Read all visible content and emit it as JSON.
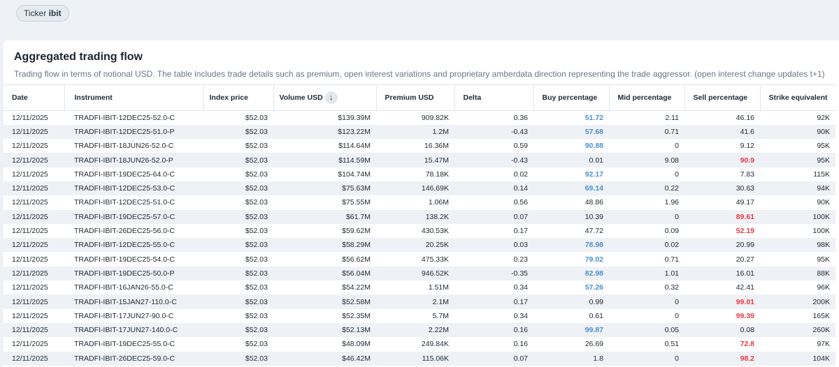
{
  "ticker": {
    "label": "Ticker",
    "value": "ibit"
  },
  "card": {
    "title": "Aggregated trading flow",
    "subtitle": "Trading flow in terms of notional USD. The table includes trade details such as premium, open interest variations and proprietary amberdata direction representing the trade aggressor. (open interest change updates t+1)"
  },
  "colors": {
    "buy_highlight": "#4a90cf",
    "sell_highlight": "#e53945"
  },
  "table": {
    "headers": [
      "Date",
      "Instrument",
      "Index price",
      "Volume USD",
      "Premium USD",
      "Delta",
      "Buy percentage",
      "Mid percentage",
      "Sell percentage",
      "Strike equivalent"
    ],
    "sort_icon": "arrow-down-icon",
    "rows": [
      {
        "date": "12/11/2025",
        "instrument": "TRADFI-IBIT-12DEC25-52.0-C",
        "index_price": "$52.03",
        "volume": "$139.39M",
        "premium": "909.82K",
        "delta": "0.36",
        "buy": "51.72",
        "mid": "2.11",
        "sell": "46.16",
        "strike": "92K",
        "hl": "buy"
      },
      {
        "date": "12/11/2025",
        "instrument": "TRADFI-IBIT-12DEC25-51.0-P",
        "index_price": "$52.03",
        "volume": "$123.22M",
        "premium": "1.2M",
        "delta": "-0.43",
        "buy": "57.68",
        "mid": "0.71",
        "sell": "41.6",
        "strike": "90K",
        "hl": "buy"
      },
      {
        "date": "12/11/2025",
        "instrument": "TRADFI-IBIT-18JUN26-52.0-C",
        "index_price": "$52.03",
        "volume": "$114.64M",
        "premium": "16.36M",
        "delta": "0.59",
        "buy": "90.88",
        "mid": "0",
        "sell": "9.12",
        "strike": "95K",
        "hl": "buy"
      },
      {
        "date": "12/11/2025",
        "instrument": "TRADFI-IBIT-18JUN26-52.0-P",
        "index_price": "$52.03",
        "volume": "$114.59M",
        "premium": "15.47M",
        "delta": "-0.43",
        "buy": "0.01",
        "mid": "9.08",
        "sell": "90.9",
        "strike": "95K",
        "hl": "sell"
      },
      {
        "date": "12/11/2025",
        "instrument": "TRADFI-IBIT-19DEC25-64.0-C",
        "index_price": "$52.03",
        "volume": "$104.74M",
        "premium": "78.18K",
        "delta": "0.02",
        "buy": "92.17",
        "mid": "0",
        "sell": "7.83",
        "strike": "115K",
        "hl": "buy"
      },
      {
        "date": "12/11/2025",
        "instrument": "TRADFI-IBIT-12DEC25-53.0-C",
        "index_price": "$52.03",
        "volume": "$75.63M",
        "premium": "146.69K",
        "delta": "0.14",
        "buy": "69.14",
        "mid": "0.22",
        "sell": "30.63",
        "strike": "94K",
        "hl": "buy"
      },
      {
        "date": "12/11/2025",
        "instrument": "TRADFI-IBIT-12DEC25-51.0-C",
        "index_price": "$52.03",
        "volume": "$75.55M",
        "premium": "1.06M",
        "delta": "0.56",
        "buy": "48.86",
        "mid": "1.96",
        "sell": "49.17",
        "strike": "90K",
        "hl": ""
      },
      {
        "date": "12/11/2025",
        "instrument": "TRADFI-IBIT-19DEC25-57.0-C",
        "index_price": "$52.03",
        "volume": "$61.7M",
        "premium": "138.2K",
        "delta": "0.07",
        "buy": "10.39",
        "mid": "0",
        "sell": "89.61",
        "strike": "100K",
        "hl": "sell"
      },
      {
        "date": "12/11/2025",
        "instrument": "TRADFI-IBIT-26DEC25-56.0-C",
        "index_price": "$52.03",
        "volume": "$59.62M",
        "premium": "430.53K",
        "delta": "0.17",
        "buy": "47.72",
        "mid": "0.09",
        "sell": "52.19",
        "strike": "100K",
        "hl": "sell"
      },
      {
        "date": "12/11/2025",
        "instrument": "TRADFI-IBIT-12DEC25-55.0-C",
        "index_price": "$52.03",
        "volume": "$58.29M",
        "premium": "20.25K",
        "delta": "0.03",
        "buy": "78.98",
        "mid": "0.02",
        "sell": "20.99",
        "strike": "98K",
        "hl": "buy"
      },
      {
        "date": "12/11/2025",
        "instrument": "TRADFI-IBIT-19DEC25-54.0-C",
        "index_price": "$52.03",
        "volume": "$56.62M",
        "premium": "475.33K",
        "delta": "0.23",
        "buy": "79.02",
        "mid": "0.71",
        "sell": "20.27",
        "strike": "95K",
        "hl": "buy"
      },
      {
        "date": "12/11/2025",
        "instrument": "TRADFI-IBIT-19DEC25-50.0-P",
        "index_price": "$52.03",
        "volume": "$56.04M",
        "premium": "946.52K",
        "delta": "-0.35",
        "buy": "82.98",
        "mid": "1.01",
        "sell": "16.01",
        "strike": "88K",
        "hl": "buy"
      },
      {
        "date": "12/11/2025",
        "instrument": "TRADFI-IBIT-16JAN26-55.0-C",
        "index_price": "$52.03",
        "volume": "$54.22M",
        "premium": "1.51M",
        "delta": "0.34",
        "buy": "57.26",
        "mid": "0.32",
        "sell": "42.41",
        "strike": "96K",
        "hl": "buy"
      },
      {
        "date": "12/11/2025",
        "instrument": "TRADFI-IBIT-15JAN27-110.0-C",
        "index_price": "$52.03",
        "volume": "$52.58M",
        "premium": "2.1M",
        "delta": "0.17",
        "buy": "0.99",
        "mid": "0",
        "sell": "99.01",
        "strike": "200K",
        "hl": "sell"
      },
      {
        "date": "12/11/2025",
        "instrument": "TRADFI-IBIT-17JUN27-90.0-C",
        "index_price": "$52.03",
        "volume": "$52.35M",
        "premium": "5.7M",
        "delta": "0.34",
        "buy": "0.61",
        "mid": "0",
        "sell": "99.39",
        "strike": "165K",
        "hl": "sell"
      },
      {
        "date": "12/11/2025",
        "instrument": "TRADFI-IBIT-17JUN27-140.0-C",
        "index_price": "$52.03",
        "volume": "$52.13M",
        "premium": "2.22M",
        "delta": "0.16",
        "buy": "99.87",
        "mid": "0.05",
        "sell": "0.08",
        "strike": "260K",
        "hl": "buy"
      },
      {
        "date": "12/11/2025",
        "instrument": "TRADFI-IBIT-19DEC25-55.0-C",
        "index_price": "$52.03",
        "volume": "$48.09M",
        "premium": "249.84K",
        "delta": "0.16",
        "buy": "26.69",
        "mid": "0.51",
        "sell": "72.8",
        "strike": "97K",
        "hl": "sell"
      },
      {
        "date": "12/11/2025",
        "instrument": "TRADFI-IBIT-26DEC25-59.0-C",
        "index_price": "$52.03",
        "volume": "$46.42M",
        "premium": "115.06K",
        "delta": "0.07",
        "buy": "1.8",
        "mid": "0",
        "sell": "98.2",
        "strike": "104K",
        "hl": "sell"
      }
    ]
  }
}
